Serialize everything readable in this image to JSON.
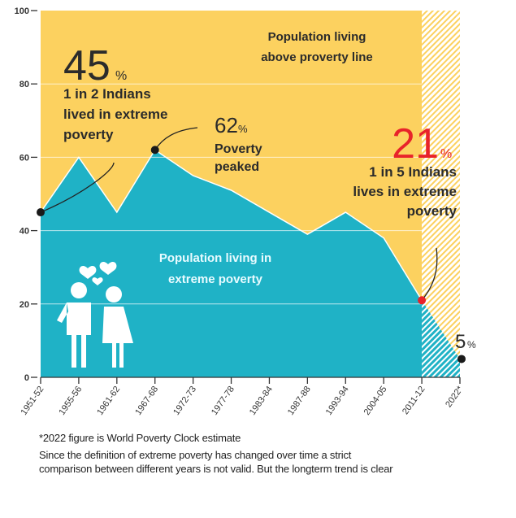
{
  "chart_data": {
    "type": "area",
    "categories": [
      "1951-52",
      "1955-56",
      "1961-62",
      "1967-68",
      "1972-73",
      "1977-78",
      "1983-84",
      "1987-88",
      "1993-94",
      "2004-05",
      "2011-12",
      "2022*"
    ],
    "values": [
      45,
      60,
      45,
      62,
      55,
      51,
      45,
      39,
      45,
      38,
      21,
      5
    ],
    "ylim": [
      0,
      100
    ],
    "yticks": [
      0,
      20,
      40,
      60,
      80,
      100
    ],
    "grid": true,
    "colors": {
      "poverty": "#1fb2c6",
      "above": "#fcd15f",
      "highlight": "#e8232a",
      "text": "#2b2b2b"
    },
    "region_labels": {
      "above": [
        "Population living",
        "above proverty line"
      ],
      "below": [
        "Population living in",
        "extreme poverty"
      ]
    },
    "annotations": [
      {
        "value": "45",
        "unit": "%",
        "lines": [
          "1 in 2 Indians",
          "lived in extreme",
          "poverty"
        ],
        "category": "1951-52"
      },
      {
        "value": "62",
        "unit": "%",
        "lines": [
          "Poverty",
          "peaked"
        ],
        "category": "1967-68"
      },
      {
        "value": "21",
        "unit": "%",
        "lines": [
          "1 in 5 Indians",
          "lives in extreme",
          "poverty"
        ],
        "category": "2011-12"
      },
      {
        "value": "5",
        "unit": "%",
        "lines": [],
        "category": "2022*"
      }
    ]
  },
  "footnotes": [
    "*2022 figure is World Poverty Clock estimate",
    "Since the definition of extreme poverty has changed over time a strict",
    "comparison between different years is not valid. But the longterm trend is clear"
  ]
}
